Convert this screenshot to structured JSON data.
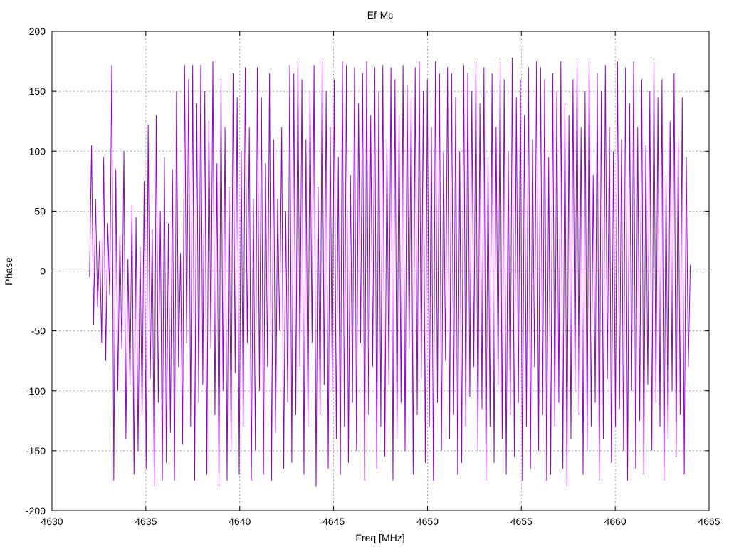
{
  "chart_data": {
    "type": "line",
    "title": "Ef-Mc",
    "xlabel": "Freq [MHz]",
    "ylabel": "Phase",
    "xlim": [
      4630,
      4665
    ],
    "ylim": [
      -200,
      200
    ],
    "xticks": [
      4630,
      4635,
      4640,
      4645,
      4650,
      4655,
      4660,
      4665
    ],
    "yticks": [
      -200,
      -150,
      -100,
      -50,
      0,
      50,
      100,
      150,
      200
    ],
    "grid": true,
    "line_color": "#9400d3",
    "series": [
      {
        "x_start": 4632.0,
        "x_end": 4664.0,
        "values": [
          -5,
          105,
          -45,
          60,
          -30,
          25,
          -60,
          95,
          -75,
          40,
          -20,
          172,
          -175,
          85,
          -100,
          30,
          -65,
          100,
          -140,
          10,
          -95,
          55,
          -170,
          45,
          -150,
          20,
          -120,
          75,
          -165,
          122,
          -90,
          35,
          -180,
          130,
          -110,
          50,
          -175,
          95,
          -160,
          40,
          -135,
          85,
          -175,
          150,
          -80,
          15,
          -145,
          172,
          -60,
          160,
          -130,
          172,
          -175,
          140,
          -110,
          172,
          -95,
          150,
          -170,
          125,
          -65,
          175,
          -120,
          90,
          -180,
          160,
          -100,
          120,
          -175,
          70,
          -150,
          165,
          -85,
          145,
          -170,
          100,
          -130,
          170,
          -60,
          120,
          -175,
          60,
          -150,
          170,
          -100,
          145,
          -170,
          90,
          -80,
          165,
          -175,
          110,
          -135,
          60,
          -50,
          120,
          -165,
          50,
          -110,
          172,
          -160,
          165,
          -120,
          175,
          -80,
          160,
          -170,
          110,
          -130,
          150,
          -60,
          172,
          -180,
          70,
          -120,
          175,
          -95,
          150,
          -165,
          120,
          -100,
          160,
          -140,
          95,
          -170,
          175,
          -130,
          172,
          -160,
          80,
          -110,
          170,
          -150,
          140,
          -60,
          165,
          -175,
          175,
          -120,
          130,
          -80,
          170,
          -165,
          150,
          -130,
          172,
          -155,
          110,
          -95,
          170,
          -175,
          160,
          -140,
          130,
          -110,
          172,
          -150,
          155,
          -65,
          145,
          -170,
          170,
          -120,
          175,
          -90,
          150,
          -160,
          160,
          -130,
          120,
          -175,
          175,
          -110,
          165,
          -150,
          100,
          -75,
          170,
          -140,
          165,
          -120,
          145,
          -170,
          100,
          -160,
          172,
          -130,
          165,
          -105,
          150,
          -80,
          175,
          -150,
          140,
          -115,
          170,
          -175,
          95,
          -130,
          165,
          -160,
          120,
          -95,
          175,
          -140,
          160,
          -170,
          100,
          -120,
          178,
          -155,
          145,
          -110,
          160,
          -175,
          130,
          -130,
          170,
          -165,
          110,
          -80,
          175,
          -150,
          170,
          -120,
          160,
          -175,
          95,
          -170,
          165,
          -130,
          150,
          -110,
          175,
          -165,
          140,
          -180,
          130,
          -140,
          160,
          -100,
          175,
          -120,
          120,
          -170,
          150,
          -150,
          175,
          -130,
          80,
          -110,
          165,
          -175,
          150,
          -140,
          172,
          -90,
          120,
          -160,
          100,
          -130,
          175,
          -115,
          110,
          -150,
          170,
          -175,
          140,
          -100,
          175,
          -165,
          120,
          -125,
          160,
          -170,
          105,
          -95,
          150,
          -150,
          175,
          -110,
          145,
          -130,
          160,
          -175,
          80,
          -140,
          125,
          -100,
          165,
          -155,
          110,
          -120,
          145,
          -170,
          95,
          -80,
          5
        ]
      }
    ]
  }
}
